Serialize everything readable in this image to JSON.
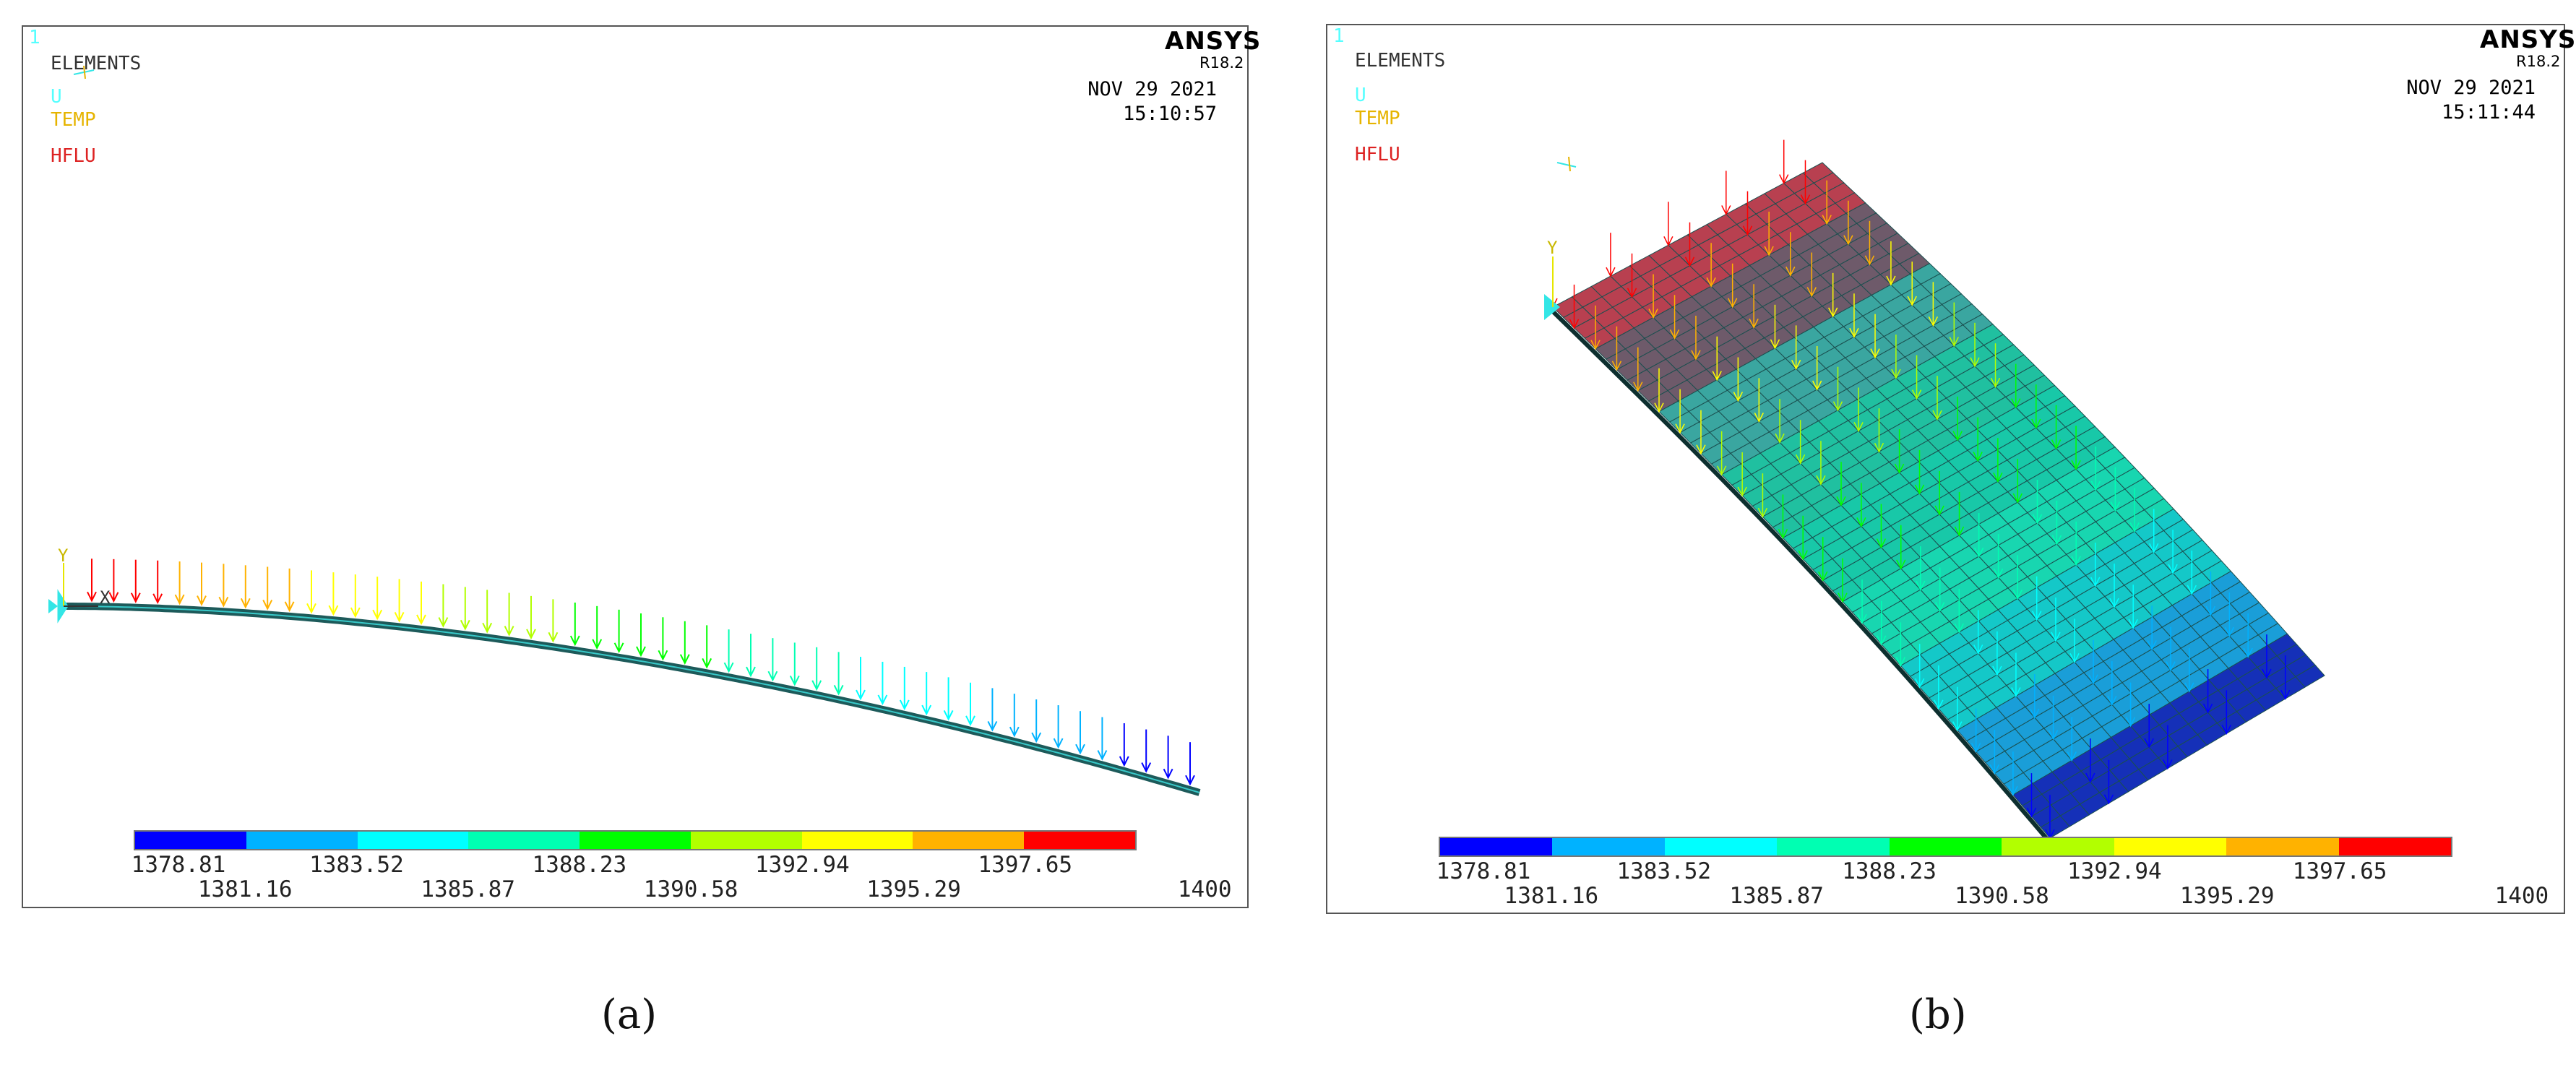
{
  "panel_a": {
    "window_number": "1",
    "legend": {
      "elements": "ELEMENTS",
      "u": "U",
      "temp": "TEMP",
      "hflu": "HFLU"
    },
    "logo": "ANSYS",
    "release": "R18.2",
    "date": "NOV 29 2021",
    "time": "15:10:57",
    "axis_y": "Y",
    "axis_x": "X",
    "caption": "(a)"
  },
  "panel_b": {
    "window_number": "1",
    "legend": {
      "elements": "ELEMENTS",
      "u": "U",
      "temp": "TEMP",
      "hflu": "HFLU"
    },
    "logo": "ANSYS",
    "release": "R18.2",
    "date": "NOV 29 2021",
    "time": "15:11:44",
    "axis_y": "Y",
    "caption": "(b)"
  },
  "colorbar": {
    "colors": [
      "#0000ff",
      "#00b2ff",
      "#00ffff",
      "#00ffb2",
      "#00ff00",
      "#b2ff00",
      "#ffff00",
      "#ffb200",
      "#ff0000"
    ],
    "labels_top": [
      "1378.81",
      "1383.52",
      "1388.23",
      "1392.94",
      "1397.65"
    ],
    "labels_bottom": [
      "1381.16",
      "1385.87",
      "1390.58",
      "1395.29",
      "1400"
    ]
  },
  "colors": {
    "window_number": "#55ffff",
    "elements": "#333333",
    "u": "#55ffff",
    "temp": "#e6b400",
    "hflu": "#dd2222",
    "beam": "#1d5a5a",
    "support": "#33e6e6"
  }
}
